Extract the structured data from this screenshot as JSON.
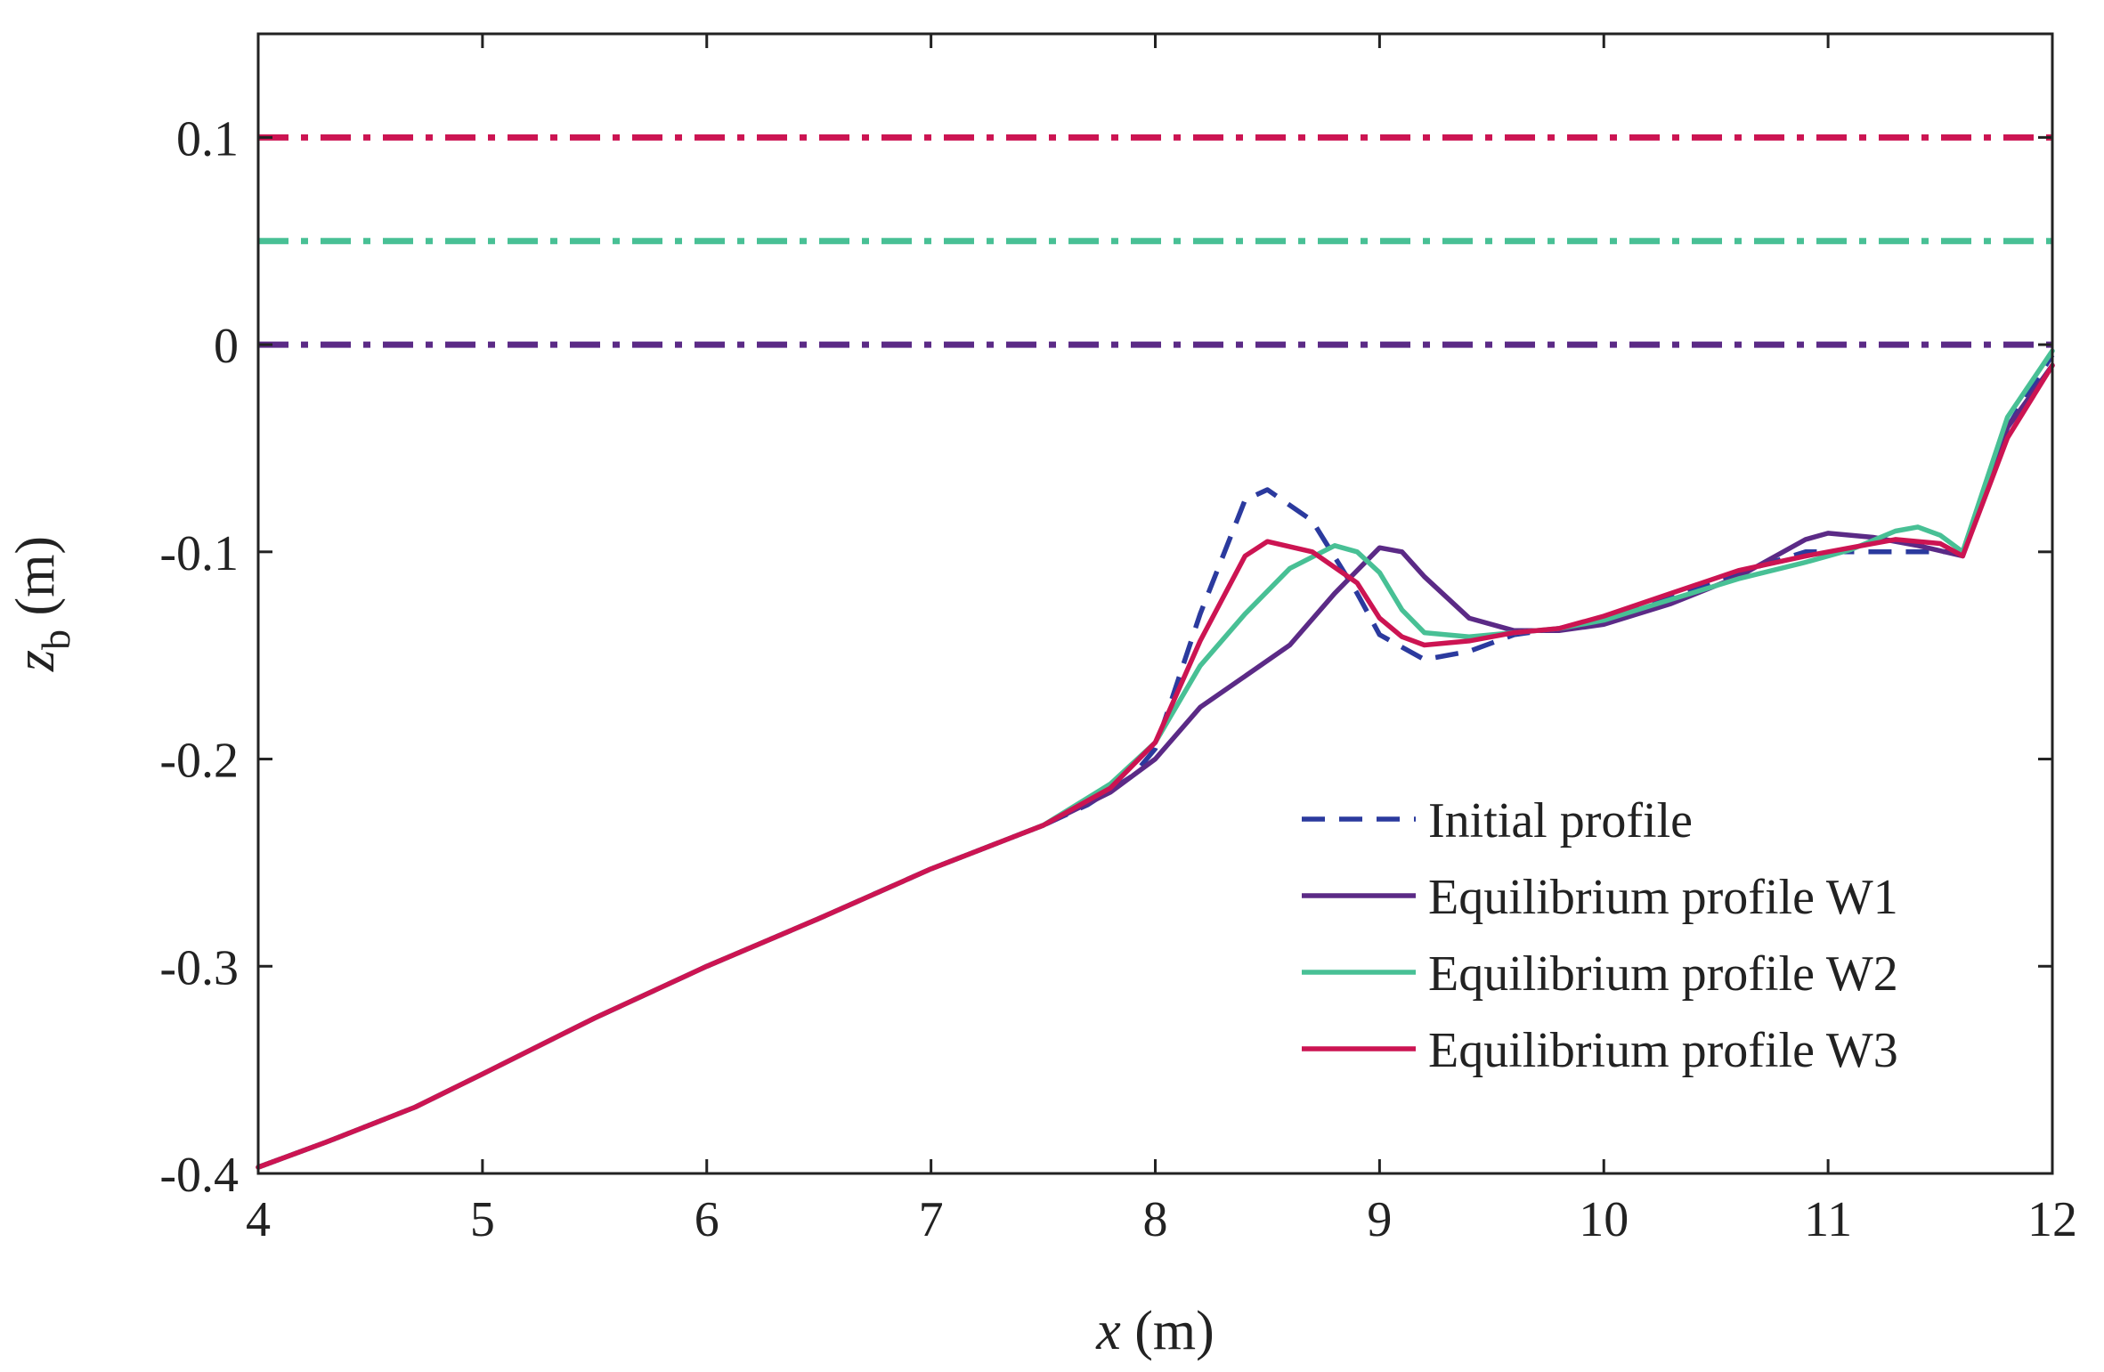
{
  "chart_data": {
    "type": "line",
    "title": "",
    "xlabel": "x (m)",
    "ylabel": "z_b (m)",
    "xlabel_parts": {
      "var": "x",
      "unit": " (m)"
    },
    "ylabel_parts": {
      "var": "z",
      "sub": "b",
      "unit": " (m)"
    },
    "xlim": [
      4,
      12
    ],
    "ylim": [
      -0.4,
      0.15
    ],
    "xticks": [
      4,
      5,
      6,
      7,
      8,
      9,
      10,
      11,
      12
    ],
    "xtick_labels": [
      "4",
      "5",
      "6",
      "7",
      "8",
      "9",
      "10",
      "11",
      "12"
    ],
    "yticks": [
      -0.4,
      -0.3,
      -0.2,
      -0.1,
      0,
      0.1
    ],
    "ytick_labels": [
      "-0.4",
      "-0.3",
      "-0.2",
      "-0.1",
      "0",
      "0.1"
    ],
    "grid": false,
    "legend_position": "bottom-right",
    "water_levels": [
      {
        "level": 0.1,
        "color": "#cc1452"
      },
      {
        "level": 0.05,
        "color": "#48c095"
      },
      {
        "level": 0.0,
        "color": "#5b2a86"
      }
    ],
    "series": [
      {
        "name": "Initial profile",
        "color": "#2b3a9e",
        "style": "dashed",
        "x": [
          4.0,
          4.3,
          4.7,
          5.0,
          5.5,
          6.0,
          6.5,
          7.0,
          7.5,
          7.7,
          7.9,
          8.0,
          8.2,
          8.4,
          8.5,
          8.7,
          8.9,
          9.0,
          9.2,
          9.4,
          9.6,
          9.8,
          10.0,
          10.3,
          10.6,
          10.9,
          11.2,
          11.5,
          11.6,
          11.8,
          11.9,
          12.0
        ],
        "y": [
          -0.397,
          -0.385,
          -0.368,
          -0.352,
          -0.325,
          -0.3,
          -0.277,
          -0.253,
          -0.232,
          -0.222,
          -0.208,
          -0.195,
          -0.13,
          -0.075,
          -0.07,
          -0.085,
          -0.12,
          -0.14,
          -0.152,
          -0.148,
          -0.14,
          -0.137,
          -0.132,
          -0.122,
          -0.11,
          -0.1,
          -0.1,
          -0.1,
          -0.1,
          -0.04,
          -0.022,
          -0.005
        ]
      },
      {
        "name": "Equilibrium profile W1",
        "color": "#5b2a86",
        "style": "solid",
        "x": [
          4.0,
          4.3,
          4.7,
          5.0,
          5.5,
          6.0,
          6.5,
          7.0,
          7.5,
          7.8,
          8.0,
          8.2,
          8.4,
          8.6,
          8.8,
          9.0,
          9.1,
          9.2,
          9.4,
          9.6,
          9.8,
          10.0,
          10.3,
          10.6,
          10.9,
          11.0,
          11.2,
          11.4,
          11.6,
          11.8,
          12.0
        ],
        "y": [
          -0.397,
          -0.385,
          -0.368,
          -0.352,
          -0.325,
          -0.3,
          -0.277,
          -0.253,
          -0.232,
          -0.216,
          -0.2,
          -0.175,
          -0.16,
          -0.145,
          -0.12,
          -0.098,
          -0.1,
          -0.112,
          -0.132,
          -0.138,
          -0.138,
          -0.135,
          -0.125,
          -0.112,
          -0.094,
          -0.091,
          -0.093,
          -0.097,
          -0.102,
          -0.04,
          -0.01
        ]
      },
      {
        "name": "Equilibrium profile W2",
        "color": "#48c095",
        "style": "solid",
        "x": [
          4.0,
          4.3,
          4.7,
          5.0,
          5.5,
          6.0,
          6.5,
          7.0,
          7.5,
          7.8,
          8.0,
          8.2,
          8.4,
          8.6,
          8.8,
          8.9,
          9.0,
          9.1,
          9.2,
          9.4,
          9.6,
          9.8,
          10.0,
          10.3,
          10.6,
          10.9,
          11.1,
          11.3,
          11.4,
          11.5,
          11.6,
          11.8,
          12.0
        ],
        "y": [
          -0.397,
          -0.385,
          -0.368,
          -0.352,
          -0.325,
          -0.3,
          -0.277,
          -0.253,
          -0.232,
          -0.212,
          -0.192,
          -0.155,
          -0.13,
          -0.108,
          -0.097,
          -0.1,
          -0.11,
          -0.128,
          -0.139,
          -0.141,
          -0.139,
          -0.137,
          -0.133,
          -0.123,
          -0.113,
          -0.105,
          -0.099,
          -0.09,
          -0.088,
          -0.092,
          -0.1,
          -0.035,
          -0.003
        ]
      },
      {
        "name": "Equilibrium profile W3",
        "color": "#cc1452",
        "style": "solid",
        "x": [
          4.0,
          4.3,
          4.7,
          5.0,
          5.5,
          6.0,
          6.5,
          7.0,
          7.5,
          7.8,
          8.0,
          8.2,
          8.4,
          8.5,
          8.7,
          8.9,
          9.0,
          9.1,
          9.2,
          9.4,
          9.6,
          9.8,
          10.0,
          10.3,
          10.6,
          10.9,
          11.1,
          11.3,
          11.5,
          11.6,
          11.8,
          12.0
        ],
        "y": [
          -0.397,
          -0.385,
          -0.368,
          -0.352,
          -0.325,
          -0.3,
          -0.277,
          -0.253,
          -0.232,
          -0.214,
          -0.192,
          -0.143,
          -0.102,
          -0.095,
          -0.1,
          -0.115,
          -0.132,
          -0.141,
          -0.145,
          -0.143,
          -0.139,
          -0.137,
          -0.131,
          -0.12,
          -0.109,
          -0.102,
          -0.098,
          -0.094,
          -0.096,
          -0.102,
          -0.045,
          -0.01
        ]
      }
    ]
  }
}
